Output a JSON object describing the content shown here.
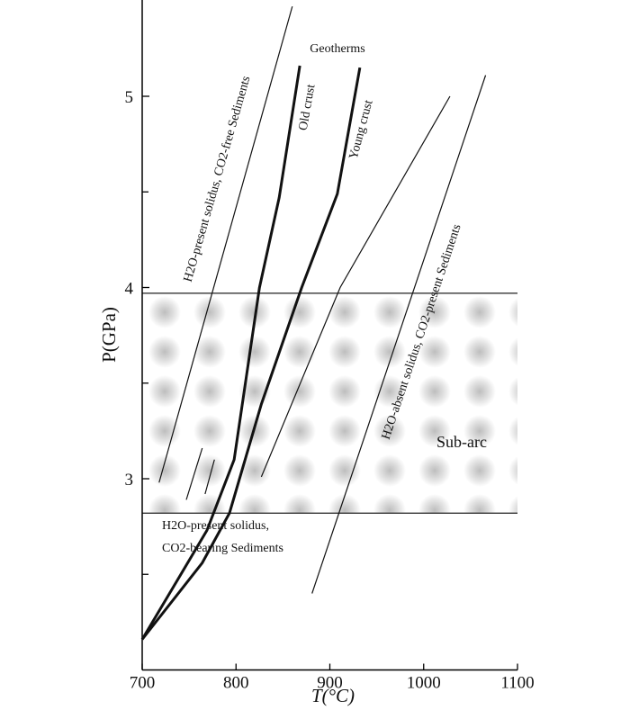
{
  "chart_data": {
    "type": "line",
    "xlabel": "T(°C)",
    "ylabel": "P(GPa)",
    "xlim": [
      700,
      1100
    ],
    "ylim": [
      2,
      5.5
    ],
    "xticks": [
      700,
      800,
      900,
      1000,
      1100
    ],
    "yticks": [
      3,
      4,
      5
    ],
    "yticks_minor": [
      2.5,
      3.5,
      4.5
    ],
    "band": [
      2.82,
      3.97
    ],
    "series": [
      {
        "name": "H2O-present solidus, CO2-free Sediments",
        "color": "#111",
        "width": 1.2,
        "x": [
          718,
          860
        ],
        "values": [
          2.98,
          5.47
        ]
      },
      {
        "name": "Old crust",
        "color": "#111",
        "width": 3,
        "x": [
          700,
          740,
          769,
          798,
          825,
          846,
          868
        ],
        "values": [
          2.16,
          2.49,
          2.73,
          3.1,
          4.0,
          4.47,
          5.16
        ]
      },
      {
        "name": "Young crust",
        "color": "#111",
        "width": 3,
        "x": [
          700,
          764,
          793,
          827,
          870,
          908,
          932
        ],
        "values": [
          2.16,
          2.56,
          2.82,
          3.39,
          4.0,
          4.49,
          5.15
        ]
      },
      {
        "color": "#111",
        "width": 1.2,
        "x": [
          827,
          911,
          1028
        ],
        "values": [
          3.01,
          4.0,
          5.0
        ]
      },
      {
        "name": "H2O-absent solidus, CO2-present Sediments",
        "color": "#111",
        "width": 1.2,
        "x": [
          881,
          1066
        ],
        "values": [
          2.4,
          5.11
        ]
      },
      {
        "color": "#111",
        "width": 1.2,
        "x": [
          747,
          764
        ],
        "values": [
          2.89,
          3.16
        ]
      },
      {
        "color": "#111",
        "width": 1.2,
        "x": [
          767,
          777
        ],
        "values": [
          2.92,
          3.1
        ]
      }
    ],
    "annotations": [
      "Geotherms",
      "Sub-arc",
      "H2O-present solidus,",
      "CO2-bearing Sediments"
    ]
  }
}
